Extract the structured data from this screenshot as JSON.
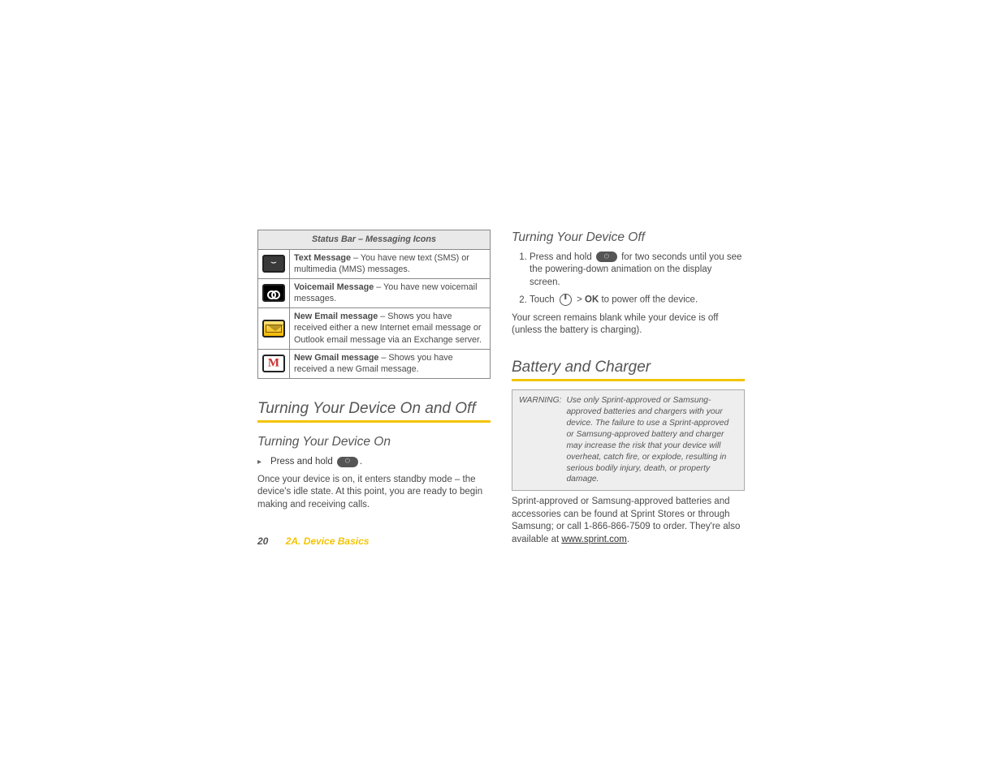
{
  "table": {
    "header": "Status Bar – Messaging Icons",
    "rows": [
      {
        "title": "Text Message",
        "desc": " – You have new text (SMS) or multimedia (MMS) messages."
      },
      {
        "title": "Voicemail Message",
        "desc": " – You have new voicemail messages."
      },
      {
        "title": "New Email message",
        "desc": " – Shows you have received either a new Internet email message or Outlook email message via an Exchange server."
      },
      {
        "title": "New Gmail message",
        "desc": " – Shows you have received a new Gmail message."
      }
    ]
  },
  "left": {
    "h2": "Turning Your Device On and Off",
    "h3": "Turning Your Device On",
    "bullet_prefix": "Press and hold ",
    "bullet_suffix": ".",
    "body": "Once your device is on, it enters standby mode – the device's idle state. At this point, you are ready to begin making and receiving calls."
  },
  "right": {
    "h3_off": "Turning Your Device Off",
    "step1a": "Press and hold ",
    "step1b": " for two seconds until you see the powering-down animation on the display screen.",
    "step2a": "Touch ",
    "step2_gt": " > ",
    "step2_ok": "OK",
    "step2b": " to power off the device.",
    "after_steps": "Your screen remains blank while your device is off (unless the battery is charging).",
    "h2_batt": "Battery and Charger",
    "warn_label": "WARNING:",
    "warn_text": "Use only Sprint-approved or Samsung-approved batteries and chargers with your device. The failure to use a Sprint-approved or Samsung-approved battery and charger may increase the risk that your device will overheat, catch fire, or explode, resulting in serious bodily injury, death, or property damage.",
    "tail_a": "Sprint-approved or Samsung-approved batteries and accessories can be found at Sprint Stores or through Samsung; or call 1-866-866-7509 to order. They're also available at ",
    "tail_link": "www.sprint.com",
    "tail_b": "."
  },
  "footer": {
    "page": "20",
    "section": "2A. Device Basics"
  }
}
